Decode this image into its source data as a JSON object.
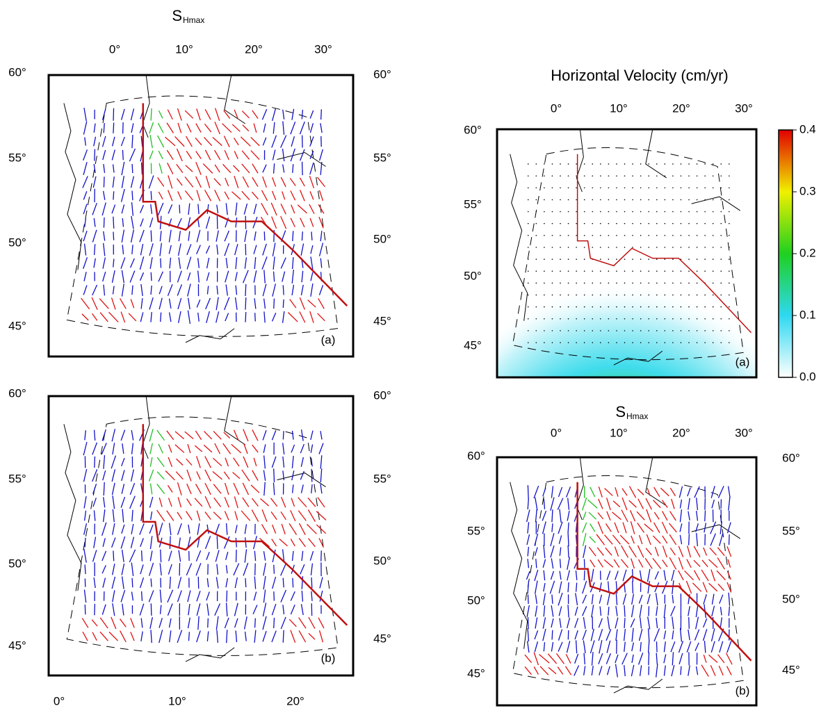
{
  "panels": [
    {
      "title": {
        "main": "S",
        "sub": "Hmax"
      },
      "lon_labels": [
        "0°",
        "10°",
        "20°",
        "30°"
      ],
      "lat_labels_left": [
        "60°",
        "55°",
        "50°",
        "45°"
      ],
      "lat_labels_right": [
        "60°",
        "55°",
        "50°",
        "45°"
      ],
      "panel_label": "(a)"
    },
    {
      "lon_labels": [
        "0°",
        "10°",
        "20°"
      ],
      "lat_labels_left": [
        "60°",
        "55°",
        "50°",
        "45°"
      ],
      "lat_labels_right": [
        "60°",
        "55°",
        "50°",
        "45°"
      ],
      "panel_label": "(b)"
    },
    {
      "title": {
        "main": "Horizontal Velocity (cm/yr)"
      },
      "lon_labels": [
        "0°",
        "10°",
        "20°",
        "30°"
      ],
      "lat_labels_left": [
        "60°",
        "55°",
        "50°",
        "45°"
      ],
      "panel_label": "(a)"
    },
    {
      "title": {
        "main": "S",
        "sub": "Hmax"
      },
      "lon_labels": [
        "0°",
        "10°",
        "20°",
        "30°"
      ],
      "lat_labels_left": [
        "60°",
        "55°",
        "50°",
        "45°"
      ],
      "lat_labels_right": [
        "60°",
        "55°",
        "50°",
        "45°"
      ],
      "panel_label": "(b)"
    }
  ],
  "colorbar": {
    "lim": [
      0,
      0.4
    ],
    "ticks": [
      {
        "value": 0,
        "label": "0.0"
      },
      {
        "value": 0.1,
        "label": "0.1"
      },
      {
        "value": 0.2,
        "label": "0.2"
      },
      {
        "value": 0.3,
        "label": "0.3"
      },
      {
        "value": 0.4,
        "label": "0.4"
      }
    ]
  }
}
